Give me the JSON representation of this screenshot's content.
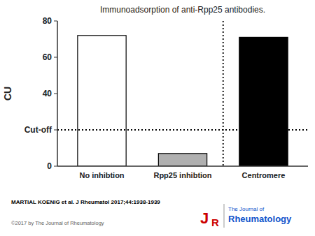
{
  "chart_data": {
    "type": "bar",
    "title": "Immunoadsorption of anti-Rpp25 antibodies.",
    "categories": [
      "No inhibtion",
      "Rpp25 inhibtion",
      "Centromere"
    ],
    "values": [
      72,
      7,
      71
    ],
    "colors": [
      "white",
      "#b0b0b0",
      "black"
    ],
    "y_label": "CU",
    "ylim": [
      0,
      80
    ],
    "yticks": [
      0,
      {
        "value": 20,
        "label": "Cut-off"
      },
      40,
      60,
      80
    ],
    "annotations": [
      {
        "type": "hline",
        "y": 20
      },
      {
        "text": "MARTIAL KOENIG et al. J Rheumatol 2017;44:1938-1939"
      },
      {
        "text": "©2017 by The Journal of Rheumatology"
      },
      {
        "text": "J"
      },
      {
        "text": "R"
      },
      {
        "text": "The Journal of"
      },
      {
        "text": "Rheumatology"
      }
    ]
  }
}
